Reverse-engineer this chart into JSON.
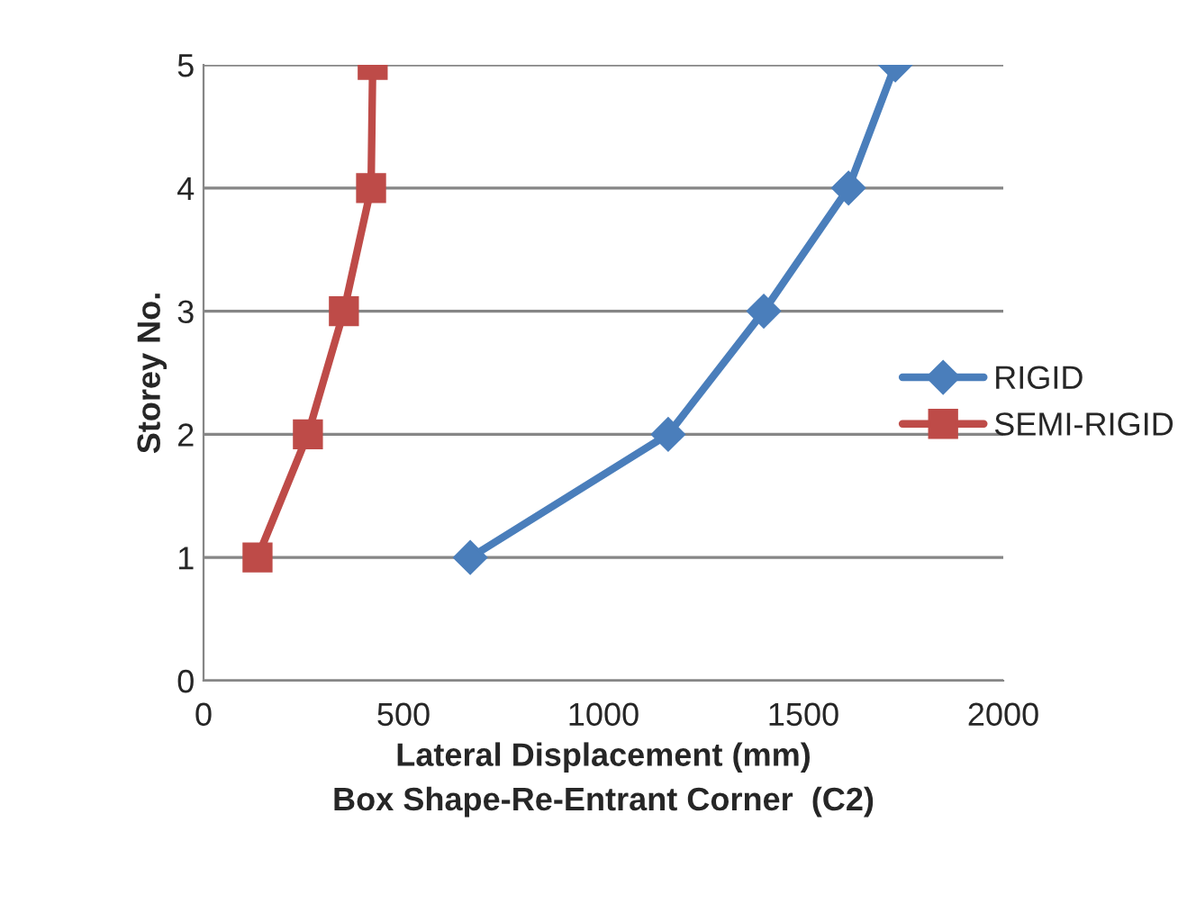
{
  "chart_data": {
    "type": "line",
    "xlabel": "Lateral Displacement (mm)\nBox Shape-Re-Entrant Corner  (C2)",
    "ylabel": "Storey No.",
    "xlim": [
      0,
      2000
    ],
    "xticks": [
      0,
      500,
      1000,
      1500,
      2000
    ],
    "ylim": [
      0,
      5
    ],
    "yticks": [
      0,
      1,
      2,
      3,
      4,
      5
    ],
    "grid": "y",
    "legend": "right",
    "series": [
      {
        "name": "RIGID",
        "color": "#4a7ebb",
        "marker": "diamond",
        "x": [
          667,
          1162,
          1401,
          1613,
          1730
        ],
        "values": [
          1,
          2,
          3,
          4,
          5
        ]
      },
      {
        "name": "SEMI-RIGID",
        "color": "#be4b48",
        "marker": "square",
        "x": [
          135,
          261,
          351,
          419,
          423
        ],
        "values": [
          1,
          2,
          3,
          4,
          5
        ]
      }
    ]
  }
}
